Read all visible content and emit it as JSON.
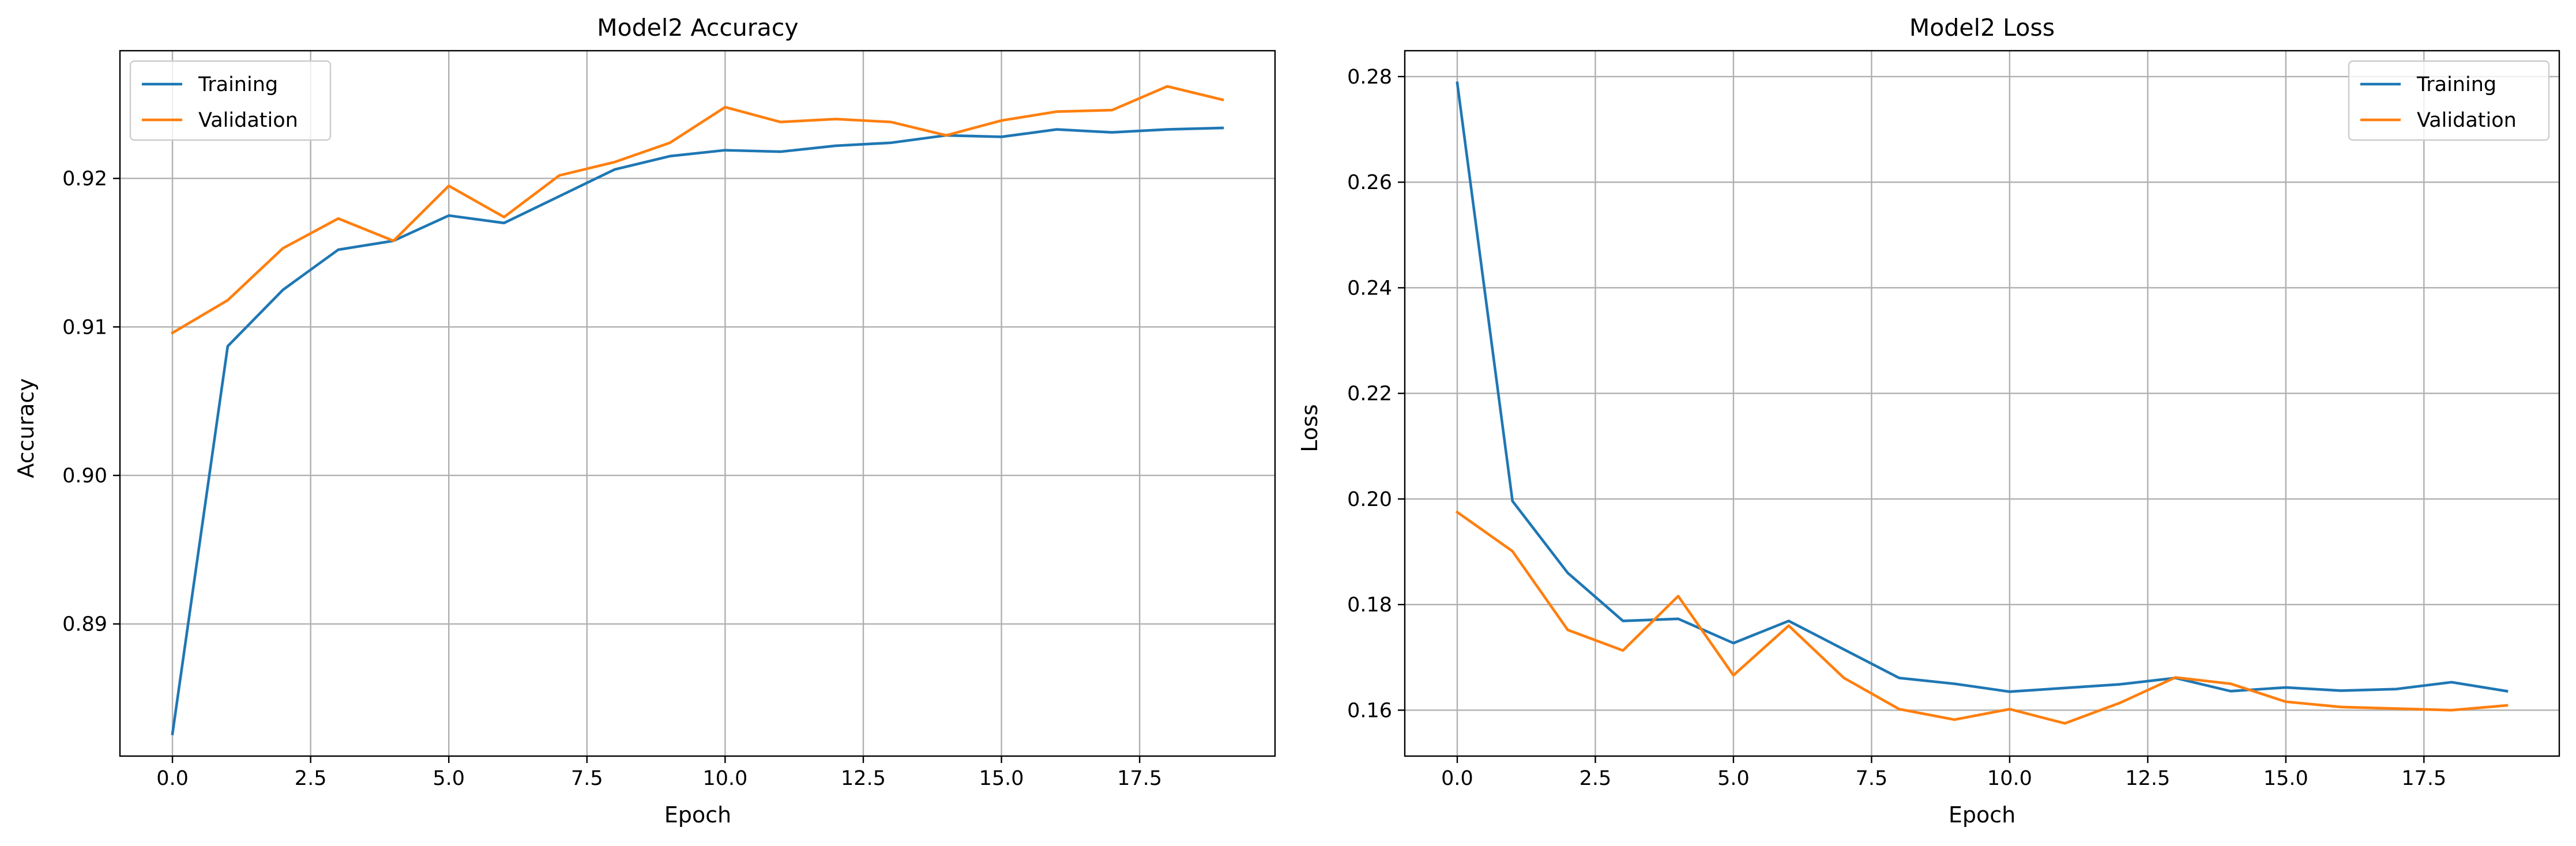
{
  "chart_data": [
    {
      "type": "line",
      "title": "Model2 Accuracy",
      "xlabel": "Epoch",
      "ylabel": "Accuracy",
      "xlim": [
        -0.95,
        19.95
      ],
      "ylim": [
        0.8811,
        0.9286
      ],
      "xticks": [
        0.0,
        2.5,
        5.0,
        7.5,
        10.0,
        12.5,
        15.0,
        17.5
      ],
      "xtick_labels": [
        "0.0",
        "2.5",
        "5.0",
        "7.5",
        "10.0",
        "12.5",
        "15.0",
        "17.5"
      ],
      "yticks": [
        0.89,
        0.9,
        0.91,
        0.92
      ],
      "ytick_labels": [
        "0.89",
        "0.90",
        "0.91",
        "0.92"
      ],
      "grid": true,
      "legend_position": "top-left",
      "x": [
        0,
        1,
        2,
        3,
        4,
        5,
        6,
        7,
        8,
        9,
        10,
        11,
        12,
        13,
        14,
        15,
        16,
        17,
        18,
        19
      ],
      "series": [
        {
          "name": "Training",
          "color": "#1f77b4",
          "values": [
            0.8826,
            0.9087,
            0.9125,
            0.9152,
            0.9158,
            0.9175,
            0.917,
            0.9188,
            0.9206,
            0.9215,
            0.9219,
            0.9218,
            0.9222,
            0.9224,
            0.9229,
            0.9228,
            0.9233,
            0.9231,
            0.9233,
            0.9234
          ]
        },
        {
          "name": "Validation",
          "color": "#ff7f0e",
          "values": [
            0.9096,
            0.9118,
            0.9153,
            0.9173,
            0.9158,
            0.9195,
            0.9174,
            0.9202,
            0.9211,
            0.9224,
            0.9248,
            0.9238,
            0.924,
            0.9238,
            0.9229,
            0.9239,
            0.9245,
            0.9246,
            0.9262,
            0.9253
          ]
        }
      ]
    },
    {
      "type": "line",
      "title": "Model2 Loss",
      "xlabel": "Epoch",
      "ylabel": "Loss",
      "xlim": [
        -0.95,
        19.95
      ],
      "ylim": [
        0.1513,
        0.2849
      ],
      "xticks": [
        0.0,
        2.5,
        5.0,
        7.5,
        10.0,
        12.5,
        15.0,
        17.5
      ],
      "xtick_labels": [
        "0.0",
        "2.5",
        "5.0",
        "7.5",
        "10.0",
        "12.5",
        "15.0",
        "17.5"
      ],
      "yticks": [
        0.16,
        0.18,
        0.2,
        0.22,
        0.24,
        0.26,
        0.28
      ],
      "ytick_labels": [
        "0.16",
        "0.18",
        "0.20",
        "0.22",
        "0.24",
        "0.26",
        "0.28"
      ],
      "grid": true,
      "legend_position": "top-right",
      "x": [
        0,
        1,
        2,
        3,
        4,
        5,
        6,
        7,
        8,
        9,
        10,
        11,
        12,
        13,
        14,
        15,
        16,
        17,
        18,
        19
      ],
      "series": [
        {
          "name": "Training",
          "color": "#1f77b4",
          "values": [
            0.2788,
            0.1996,
            0.186,
            0.1769,
            0.1773,
            0.1727,
            0.1769,
            0.1715,
            0.1661,
            0.165,
            0.1635,
            0.1642,
            0.1649,
            0.1661,
            0.1636,
            0.1643,
            0.1637,
            0.164,
            0.1653,
            0.1636
          ]
        },
        {
          "name": "Validation",
          "color": "#ff7f0e",
          "values": [
            0.1975,
            0.1901,
            0.1752,
            0.1713,
            0.1816,
            0.1666,
            0.176,
            0.1661,
            0.1602,
            0.1582,
            0.1602,
            0.1575,
            0.1614,
            0.1662,
            0.165,
            0.1616,
            0.1606,
            0.1603,
            0.16,
            0.1609
          ]
        }
      ]
    }
  ]
}
